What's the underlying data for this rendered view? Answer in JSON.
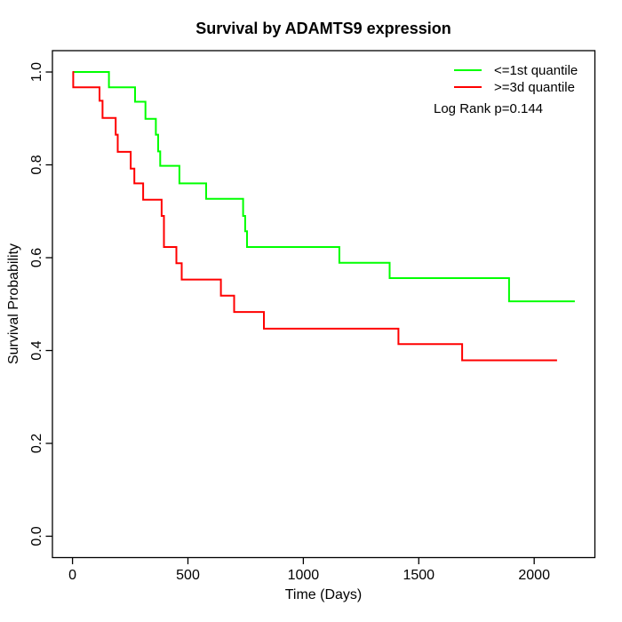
{
  "chart_data": {
    "type": "line",
    "subtype": "kaplan-meier-step",
    "title": "Survival by ADAMTS9 expression",
    "xlabel": "Time (Days)",
    "ylabel": "Survival Probability",
    "x_ticks": [
      0,
      500,
      1000,
      1500,
      2000
    ],
    "y_ticks": [
      0.0,
      0.2,
      0.4,
      0.6,
      0.8,
      1.0
    ],
    "xlim": [
      -87,
      2263
    ],
    "ylim": [
      -0.046,
      1.046
    ],
    "grid": false,
    "legend_position": "top-right",
    "annotation": "Log Rank p=0.144",
    "axis_color": "#000000",
    "series": [
      {
        "name": "<=1st quantile",
        "color": "#00FF00",
        "steps": [
          [
            0,
            1.0
          ],
          [
            158,
            0.967
          ],
          [
            271,
            0.936
          ],
          [
            316,
            0.899
          ],
          [
            361,
            0.865
          ],
          [
            371,
            0.829
          ],
          [
            380,
            0.798
          ],
          [
            463,
            0.76
          ],
          [
            579,
            0.727
          ],
          [
            739,
            0.69
          ],
          [
            748,
            0.657
          ],
          [
            756,
            0.623
          ],
          [
            1156,
            0.589
          ],
          [
            1374,
            0.556
          ],
          [
            1891,
            0.506
          ]
        ],
        "end_time": 2176
      },
      {
        "name": ">=3d quantile",
        "color": "#FF0000",
        "steps": [
          [
            0,
            1.0
          ],
          [
            3,
            0.967
          ],
          [
            117,
            0.938
          ],
          [
            130,
            0.901
          ],
          [
            187,
            0.865
          ],
          [
            196,
            0.828
          ],
          [
            252,
            0.792
          ],
          [
            268,
            0.76
          ],
          [
            306,
            0.725
          ],
          [
            386,
            0.69
          ],
          [
            396,
            0.623
          ],
          [
            450,
            0.588
          ],
          [
            473,
            0.553
          ],
          [
            643,
            0.518
          ],
          [
            700,
            0.483
          ],
          [
            829,
            0.447
          ],
          [
            1412,
            0.414
          ],
          [
            1688,
            0.379
          ]
        ],
        "end_time": 2099
      }
    ]
  }
}
